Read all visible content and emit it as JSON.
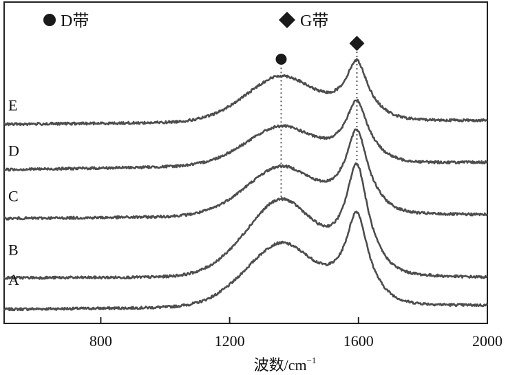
{
  "chart_data": {
    "type": "line",
    "title": "",
    "xlabel": "波数/cm",
    "xlabel_superscript": "−1",
    "ylabel": "",
    "xlim": [
      500,
      2000
    ],
    "ylim": [
      -0.2,
      4.4
    ],
    "x_ticks": [
      800,
      1200,
      1600,
      2000
    ],
    "x_tick_labels": [
      "800",
      "1200",
      "1600",
      "2000"
    ],
    "show_y_ticks": false,
    "grid": false,
    "legend": [
      {
        "label": "D带",
        "marker": "circle",
        "position_x": 1360
      },
      {
        "label": "G带",
        "marker": "diamond",
        "position_x": 1595
      }
    ],
    "peak_markers": [
      {
        "band": "D带",
        "x": 1360,
        "shape": "circle"
      },
      {
        "band": "G带",
        "x": 1595,
        "shape": "diamond"
      }
    ],
    "reference_lines": [
      {
        "x": 1360,
        "style": "dotted"
      },
      {
        "x": 1595,
        "style": "dotted"
      }
    ],
    "colors": {
      "curve": "#4d4d4d",
      "axis": "#222222",
      "marker": "#1a1a1a"
    },
    "series": [
      {
        "name": "A",
        "baseline": 0.0,
        "d_peak": 0.9,
        "g_peak": 1.25,
        "tail": 0.05
      },
      {
        "name": "B",
        "baseline": 0.45,
        "d_peak": 1.55,
        "g_peak": 1.95,
        "tail": 0.45
      },
      {
        "name": "C",
        "baseline": 1.3,
        "d_peak": 2.0,
        "g_peak": 2.45,
        "tail": 1.35
      },
      {
        "name": "D",
        "baseline": 2.0,
        "d_peak": 2.55,
        "g_peak": 2.85,
        "tail": 2.1
      },
      {
        "name": "E",
        "baseline": 2.65,
        "d_peak": 3.3,
        "g_peak": 3.45,
        "tail": 2.7
      }
    ]
  }
}
